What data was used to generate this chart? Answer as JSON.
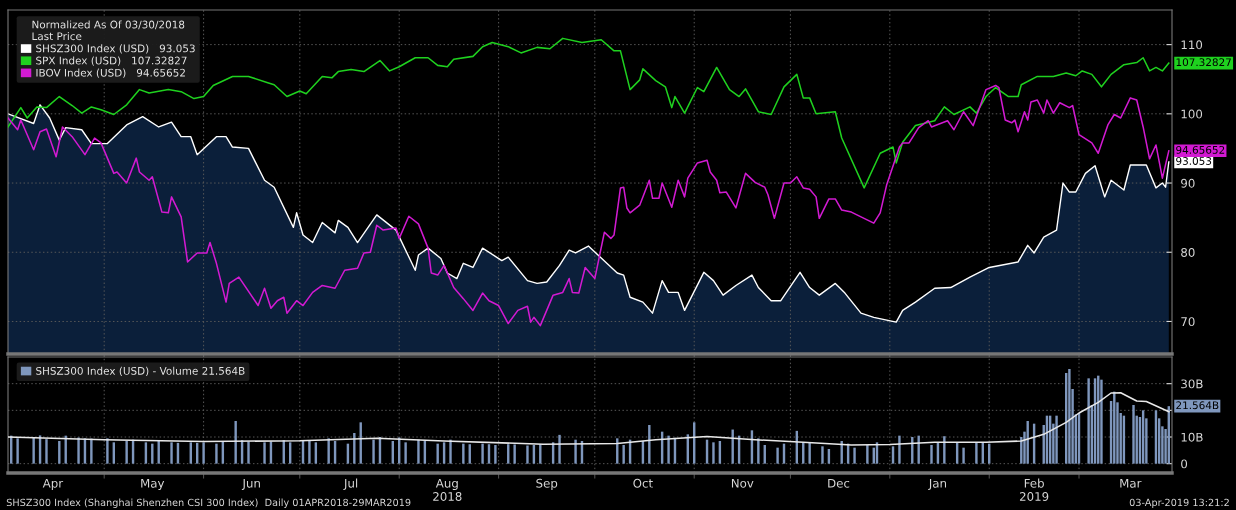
{
  "chart_data": [
    {
      "type": "line",
      "legend_title": "Normalized As Of 03/30/2018\nLast Price",
      "legend": "top left",
      "tick_labels": "y",
      "grid": true,
      "line_style": "solid",
      "xlim": [
        "2018-04-01",
        "2019-03-30"
      ],
      "ylim": [
        65.3,
        115
      ],
      "yticks": [
        70,
        80,
        90,
        100,
        110
      ],
      "xticks": [
        {
          "value": "2018-05-01",
          "label": null
        },
        {
          "value": "2018-06-01",
          "label": null
        },
        {
          "value": "2018-07-01",
          "label": null
        },
        {
          "value": "2018-08-01",
          "label": null
        },
        {
          "value": "2018-09-01",
          "label": null
        },
        {
          "value": "2018-10-01",
          "label": null
        },
        {
          "value": "2018-11-01",
          "label": null
        },
        {
          "value": "2018-12-01",
          "label": null
        },
        {
          "value": "2019-01-01",
          "label": null
        },
        {
          "value": "2019-02-01",
          "label": null
        },
        {
          "value": "2019-03-01",
          "label": null
        }
      ],
      "series": [
        {
          "name": "SHSZ300 Index (USD)   93.053",
          "type": "area",
          "color": "#ffffff",
          "x": [
            "2018-04-01",
            "2018-04-09",
            "2018-04-11",
            "2018-04-14",
            "2018-04-17",
            "2018-04-19",
            "2018-04-24",
            "2018-04-27",
            "2018-05-02",
            "2018-05-08",
            "2018-05-13",
            "2018-05-18",
            "2018-05-22",
            "2018-05-25",
            "2018-05-28",
            "2018-05-30",
            "2018-06-05",
            "2018-06-08",
            "2018-06-10",
            "2018-06-15",
            "2018-06-20",
            "2018-06-23",
            "2018-06-29",
            "2018-06-30",
            "2018-07-02",
            "2018-07-05",
            "2018-07-08",
            "2018-07-12",
            "2018-07-13",
            "2018-07-16",
            "2018-07-19",
            "2018-07-25",
            "2018-07-31",
            "2018-08-06",
            "2018-08-07",
            "2018-08-10",
            "2018-08-14",
            "2018-08-16",
            "2018-08-19",
            "2018-08-21",
            "2018-08-24",
            "2018-08-27",
            "2018-09-02",
            "2018-09-04",
            "2018-09-10",
            "2018-09-13",
            "2018-09-16",
            "2018-09-20",
            "2018-09-23",
            "2018-09-25",
            "2018-09-29",
            "2018-10-08",
            "2018-10-10",
            "2018-10-12",
            "2018-10-16",
            "2018-10-19",
            "2018-10-22",
            "2018-10-24",
            "2018-10-27",
            "2018-10-29",
            "2018-11-04",
            "2018-11-07",
            "2018-11-10",
            "2018-11-14",
            "2018-11-19",
            "2018-11-21",
            "2018-11-25",
            "2018-11-28",
            "2018-12-04",
            "2018-12-07",
            "2018-12-10",
            "2018-12-15",
            "2018-12-18",
            "2018-12-23",
            "2018-12-27",
            "2019-01-03",
            "2019-01-05",
            "2019-01-09",
            "2019-01-15",
            "2019-01-20",
            "2019-01-26",
            "2019-02-01",
            "2019-02-10",
            "2019-02-13",
            "2019-02-15",
            "2019-02-18",
            "2019-02-22",
            "2019-02-24",
            "2019-02-26",
            "2019-02-28",
            "2019-03-03",
            "2019-03-06",
            "2019-03-09",
            "2019-03-11",
            "2019-03-15",
            "2019-03-17",
            "2019-03-22",
            "2019-03-25",
            "2019-03-27",
            "2019-03-28",
            "2019-03-29"
          ],
          "values": [
            100,
            98.6,
            101.3,
            99.4,
            96.2,
            98,
            97.7,
            95.7,
            95.7,
            98.4,
            99.6,
            98.1,
            98.8,
            96.7,
            96.7,
            94.1,
            96.7,
            96.7,
            95.2,
            95,
            90.4,
            89.4,
            83.6,
            85.7,
            82.5,
            81.4,
            84.3,
            82.8,
            84.6,
            83.6,
            81.4,
            85.4,
            83.2,
            77.4,
            79.6,
            80.6,
            79.1,
            77,
            76.2,
            78.4,
            77.8,
            80.6,
            78.8,
            79.3,
            75.9,
            75.5,
            75.7,
            78.1,
            80.3,
            79.9,
            80.9,
            77,
            76.7,
            73.5,
            72.8,
            71.2,
            75.9,
            74.2,
            74.2,
            71.6,
            77.1,
            75.9,
            73.8,
            75.2,
            76.7,
            74.9,
            73,
            73,
            77.1,
            74.9,
            73.8,
            75.5,
            74.1,
            71.2,
            70.6,
            69.9,
            71.6,
            72.8,
            74.8,
            74.9,
            76.4,
            77.8,
            78.6,
            81,
            79.9,
            82.2,
            83.2,
            90,
            88.7,
            88.7,
            91.4,
            92.5,
            88,
            90.4,
            89,
            92.6,
            92.6,
            89.3,
            90,
            89.4,
            93.053
          ]
        },
        {
          "name": "SPX Index (USD)   107.32827",
          "color": "#1fd11f",
          "x": [
            "2018-04-01",
            "2018-04-05",
            "2018-04-07",
            "2018-04-10",
            "2018-04-13",
            "2018-04-17",
            "2018-04-21",
            "2018-04-24",
            "2018-04-27",
            "2018-04-30",
            "2018-05-04",
            "2018-05-08",
            "2018-05-12",
            "2018-05-15",
            "2018-05-21",
            "2018-05-25",
            "2018-05-29",
            "2018-06-01",
            "2018-06-04",
            "2018-06-10",
            "2018-06-15",
            "2018-06-21",
            "2018-06-23",
            "2018-06-27",
            "2018-07-01",
            "2018-07-03",
            "2018-07-08",
            "2018-07-11",
            "2018-07-13",
            "2018-07-17",
            "2018-07-21",
            "2018-07-26",
            "2018-07-29",
            "2018-08-01",
            "2018-08-06",
            "2018-08-10",
            "2018-08-13",
            "2018-08-16",
            "2018-08-18",
            "2018-08-24",
            "2018-08-27",
            "2018-08-30",
            "2018-09-04",
            "2018-09-08",
            "2018-09-13",
            "2018-09-17",
            "2018-09-21",
            "2018-09-27",
            "2018-10-03",
            "2018-10-07",
            "2018-10-09",
            "2018-10-12",
            "2018-10-15",
            "2018-10-16",
            "2018-10-20",
            "2018-10-23",
            "2018-10-25",
            "2018-10-26",
            "2018-10-29",
            "2018-11-02",
            "2018-11-04",
            "2018-11-08",
            "2018-11-12",
            "2018-11-15",
            "2018-11-17",
            "2018-11-21",
            "2018-11-25",
            "2018-11-29",
            "2018-12-03",
            "2018-12-05",
            "2018-12-07",
            "2018-12-09",
            "2018-12-15",
            "2018-12-17",
            "2018-12-24",
            "2018-12-29",
            "2019-01-02",
            "2019-01-03",
            "2019-01-05",
            "2019-01-09",
            "2019-01-15",
            "2019-01-18",
            "2019-01-21",
            "2019-01-26",
            "2019-01-28",
            "2019-01-31",
            "2019-02-03",
            "2019-02-07",
            "2019-02-10",
            "2019-02-11",
            "2019-02-16",
            "2019-02-21",
            "2019-02-25",
            "2019-02-28",
            "2019-03-02",
            "2019-03-05",
            "2019-03-08",
            "2019-03-11",
            "2019-03-15",
            "2019-03-19",
            "2019-03-21",
            "2019-03-23",
            "2019-03-25",
            "2019-03-27",
            "2019-03-29"
          ],
          "values": [
            98.1,
            100.9,
            99.4,
            101,
            100.9,
            102.5,
            101.2,
            100.1,
            101,
            100.6,
            99.9,
            101.3,
            103.5,
            103,
            103.5,
            103.2,
            102.2,
            102.5,
            104.1,
            105.4,
            105.4,
            104.5,
            104.2,
            102.5,
            103.3,
            102.9,
            105.4,
            105.2,
            106.1,
            106.4,
            106.1,
            107.7,
            106.2,
            106.8,
            108.1,
            108.1,
            107,
            106.8,
            107.9,
            108.3,
            109.7,
            110.3,
            109.7,
            108.8,
            109.6,
            109.4,
            110.9,
            110.3,
            110.7,
            109.1,
            109.1,
            103.5,
            104.9,
            106.5,
            104.8,
            103.9,
            100.9,
            102.5,
            100.1,
            103.8,
            103.2,
            106.7,
            103.5,
            102.5,
            103.6,
            100.3,
            99.9,
            103.9,
            105.7,
            102.3,
            102.3,
            100,
            100.3,
            96.5,
            89.3,
            94.3,
            95.2,
            92.9,
            95.9,
            98.3,
            99,
            101,
            99.9,
            101,
            100.1,
            102.5,
            103.8,
            102.5,
            102.5,
            104.2,
            105.4,
            105.4,
            105.9,
            105.5,
            106.2,
            105.7,
            103.9,
            105.7,
            107.1,
            107.4,
            108.1,
            106.2,
            106.7,
            106.2,
            107.32827
          ]
        },
        {
          "name": "IBOV Index (USD)   94.65652",
          "color": "#d21ad2",
          "x": [
            "2018-04-01",
            "2018-04-04",
            "2018-04-05",
            "2018-04-09",
            "2018-04-11",
            "2018-04-13",
            "2018-04-16",
            "2018-04-18",
            "2018-04-21",
            "2018-04-25",
            "2018-04-28",
            "2018-04-30",
            "2018-05-04",
            "2018-05-05",
            "2018-05-08",
            "2018-05-11",
            "2018-05-12",
            "2018-05-15",
            "2018-05-16",
            "2018-05-19",
            "2018-05-21",
            "2018-05-22",
            "2018-05-25",
            "2018-05-27",
            "2018-05-30",
            "2018-06-02",
            "2018-06-03",
            "2018-06-05",
            "2018-06-08",
            "2018-06-09",
            "2018-06-12",
            "2018-06-18",
            "2018-06-20",
            "2018-06-22",
            "2018-06-24",
            "2018-06-26",
            "2018-06-27",
            "2018-06-30",
            "2018-07-02",
            "2018-07-05",
            "2018-07-08",
            "2018-07-12",
            "2018-07-15",
            "2018-07-19",
            "2018-07-21",
            "2018-07-23",
            "2018-07-25",
            "2018-07-27",
            "2018-07-31",
            "2018-08-01",
            "2018-08-04",
            "2018-08-07",
            "2018-08-10",
            "2018-08-11",
            "2018-08-13",
            "2018-08-15",
            "2018-08-18",
            "2018-08-21",
            "2018-08-24",
            "2018-08-27",
            "2018-08-29",
            "2018-09-01",
            "2018-09-04",
            "2018-09-07",
            "2018-09-10",
            "2018-09-11",
            "2018-09-12",
            "2018-09-14",
            "2018-09-18",
            "2018-09-21",
            "2018-09-23",
            "2018-09-24",
            "2018-09-26",
            "2018-09-28",
            "2018-10-01",
            "2018-10-04",
            "2018-10-06",
            "2018-10-07",
            "2018-10-09",
            "2018-10-10",
            "2018-10-11",
            "2018-10-12",
            "2018-10-15",
            "2018-10-18",
            "2018-10-19",
            "2018-10-21",
            "2018-10-22",
            "2018-10-25",
            "2018-10-27",
            "2018-10-29",
            "2018-10-30",
            "2018-11-02",
            "2018-11-05",
            "2018-11-06",
            "2018-11-08",
            "2018-11-09",
            "2018-11-11",
            "2018-11-14",
            "2018-11-17",
            "2018-11-20",
            "2018-11-23",
            "2018-11-24",
            "2018-11-26",
            "2018-11-29",
            "2018-12-01",
            "2018-12-03",
            "2018-12-05",
            "2018-12-07",
            "2018-12-09",
            "2018-12-10",
            "2018-12-13",
            "2018-12-15",
            "2018-12-17",
            "2018-12-20",
            "2018-12-27",
            "2018-12-29",
            "2018-12-31",
            "2019-01-04",
            "2019-01-05",
            "2019-01-07",
            "2019-01-10",
            "2019-01-13",
            "2019-01-14",
            "2019-01-19",
            "2019-01-21",
            "2019-01-24",
            "2019-01-27",
            "2019-01-31",
            "2019-02-03",
            "2019-02-04",
            "2019-02-06",
            "2019-02-08",
            "2019-02-09",
            "2019-02-10",
            "2019-02-12",
            "2019-02-13",
            "2019-02-14",
            "2019-02-16",
            "2019-02-18",
            "2019-02-19",
            "2019-02-21",
            "2019-02-23",
            "2019-02-26",
            "2019-02-27",
            "2019-03-01",
            "2019-03-05",
            "2019-03-07",
            "2019-03-10",
            "2019-03-12",
            "2019-03-14",
            "2019-03-17",
            "2019-03-19",
            "2019-03-21",
            "2019-03-23",
            "2019-03-25",
            "2019-03-27",
            "2019-03-29"
          ],
          "values": [
            99.4,
            97.7,
            99.1,
            94.8,
            97.4,
            97.8,
            93.8,
            98.1,
            96.7,
            94.1,
            96.5,
            95.8,
            91.4,
            91.6,
            90,
            93.6,
            91.6,
            90.4,
            90.9,
            85.8,
            85.7,
            88,
            85.1,
            78.6,
            79.9,
            79.9,
            81.4,
            78.4,
            72.8,
            75.5,
            76.4,
            72.3,
            74.8,
            71.9,
            73,
            73.5,
            71.2,
            73,
            72.3,
            74.2,
            75.2,
            74.8,
            77.4,
            77.7,
            79.9,
            80,
            83.9,
            83.2,
            83.5,
            82,
            85.2,
            84.1,
            80.6,
            77,
            76.7,
            78.1,
            74.9,
            73.3,
            71.6,
            74.1,
            73,
            72.3,
            69.7,
            71.6,
            72.2,
            69.9,
            70.6,
            69.4,
            73.8,
            74.2,
            76.2,
            74.2,
            74.1,
            77.8,
            76.2,
            82.9,
            82,
            82.5,
            89.3,
            89.4,
            86.4,
            85.7,
            86.8,
            90.4,
            87.8,
            87.8,
            90,
            86.5,
            90.4,
            88,
            90.7,
            92.9,
            93.3,
            91.6,
            90.4,
            88.6,
            88.7,
            86.4,
            91.4,
            90.1,
            89.4,
            88.3,
            84.9,
            90,
            90,
            90.9,
            89.3,
            89.1,
            88,
            84.9,
            87.7,
            87.7,
            86.1,
            85.8,
            84.2,
            85.7,
            89.7,
            95.2,
            95.8,
            95.8,
            98,
            99,
            98.1,
            99,
            97.7,
            100.3,
            98.3,
            103.5,
            104.1,
            103.8,
            99.1,
            98.7,
            99.1,
            97.4,
            100.3,
            99.1,
            101.7,
            102,
            100.1,
            102,
            100.1,
            101.6,
            100.9,
            101.2,
            97,
            95.8,
            94.3,
            98.4,
            99.9,
            99.4,
            102.3,
            102,
            98.1,
            93.5,
            95.5,
            90.7,
            94.65652
          ]
        }
      ],
      "annotations": [
        {
          "text": "93.053",
          "x": "2019-03-29",
          "y": 93.053
        },
        {
          "text": "107.32827",
          "x": "2019-03-29",
          "y": 107.32827
        },
        {
          "text": "94.65652",
          "x": "2019-03-29",
          "y": 94.65652
        }
      ]
    },
    {
      "type": "bar",
      "legend": "top left",
      "grid": true,
      "xlim": [
        "2018-04-01",
        "2019-03-30"
      ],
      "ylim": [
        -3.5,
        40
      ],
      "yticks": [
        0,
        {
          "value": 10,
          "label": "10B"
        },
        {
          "value": 20,
          "label": null
        },
        {
          "value": 30,
          "label": "30B"
        }
      ],
      "xticks": [
        {
          "value": "2018-04-15",
          "label": "Apr"
        },
        {
          "value": "2018-05-01",
          "label": null
        },
        {
          "value": "2018-05-16",
          "label": "May"
        },
        {
          "value": "2018-06-01",
          "label": null
        },
        {
          "value": "2018-06-16",
          "label": "Jun"
        },
        {
          "value": "2018-07-01",
          "label": null
        },
        {
          "value": "2018-07-17",
          "label": "Jul"
        },
        {
          "value": "2018-08-01",
          "label": null
        },
        {
          "value": "2018-08-16",
          "label": "Aug\n2018"
        },
        {
          "value": "2018-09-01",
          "label": null
        },
        {
          "value": "2018-09-16",
          "label": "Sep"
        },
        {
          "value": "2018-10-01",
          "label": null
        },
        {
          "value": "2018-10-16",
          "label": "Oct"
        },
        {
          "value": "2018-11-01",
          "label": null
        },
        {
          "value": "2018-11-16",
          "label": "Nov"
        },
        {
          "value": "2018-12-01",
          "label": null
        },
        {
          "value": "2018-12-16",
          "label": "Dec"
        },
        {
          "value": "2019-01-01",
          "label": null
        },
        {
          "value": "2019-01-16",
          "label": "Jan"
        },
        {
          "value": "2019-02-01",
          "label": null
        },
        {
          "value": "2019-02-15",
          "label": "Feb\n2019"
        },
        {
          "value": "2019-03-01",
          "label": null
        },
        {
          "value": "2019-03-17",
          "label": "Mar"
        }
      ],
      "series": [
        {
          "name": "SHSZ300 Index (USD) - Volume 21.564B",
          "color": "#7f97bd",
          "x": [
            "2018-04-02",
            "2018-04-04",
            "2018-04-09",
            "2018-04-11",
            "2018-04-13",
            "2018-04-17",
            "2018-04-19",
            "2018-04-23",
            "2018-04-25",
            "2018-04-27",
            "2018-05-02",
            "2018-05-04",
            "2018-05-08",
            "2018-05-10",
            "2018-05-14",
            "2018-05-16",
            "2018-05-18",
            "2018-05-22",
            "2018-05-24",
            "2018-05-28",
            "2018-05-30",
            "2018-06-01",
            "2018-06-05",
            "2018-06-07",
            "2018-06-11",
            "2018-06-13",
            "2018-06-15",
            "2018-06-20",
            "2018-06-22",
            "2018-06-26",
            "2018-06-28",
            "2018-07-02",
            "2018-07-04",
            "2018-07-06",
            "2018-07-10",
            "2018-07-12",
            "2018-07-16",
            "2018-07-18",
            "2018-07-20",
            "2018-07-24",
            "2018-07-26",
            "2018-07-30",
            "2018-08-01",
            "2018-08-03",
            "2018-08-07",
            "2018-08-09",
            "2018-08-13",
            "2018-08-15",
            "2018-08-17",
            "2018-08-21",
            "2018-08-23",
            "2018-08-27",
            "2018-08-29",
            "2018-08-31",
            "2018-09-04",
            "2018-09-06",
            "2018-09-10",
            "2018-09-12",
            "2018-09-14",
            "2018-09-18",
            "2018-09-20",
            "2018-09-25",
            "2018-09-27",
            "2018-10-08",
            "2018-10-10",
            "2018-10-12",
            "2018-10-16",
            "2018-10-18",
            "2018-10-22",
            "2018-10-24",
            "2018-10-26",
            "2018-10-30",
            "2018-11-01",
            "2018-11-05",
            "2018-11-07",
            "2018-11-09",
            "2018-11-13",
            "2018-11-15",
            "2018-11-19",
            "2018-11-21",
            "2018-11-23",
            "2018-11-27",
            "2018-11-29",
            "2018-12-03",
            "2018-12-05",
            "2018-12-07",
            "2018-12-11",
            "2018-12-13",
            "2018-12-17",
            "2018-12-19",
            "2018-12-21",
            "2018-12-25",
            "2018-12-27",
            "2018-12-28",
            "2019-01-02",
            "2019-01-04",
            "2019-01-08",
            "2019-01-10",
            "2019-01-14",
            "2019-01-16",
            "2019-01-18",
            "2019-01-22",
            "2019-01-24",
            "2019-01-28",
            "2019-01-30",
            "2019-02-01",
            "2019-02-11",
            "2019-02-12",
            "2019-02-13",
            "2019-02-15",
            "2019-02-18",
            "2019-02-19",
            "2019-02-20",
            "2019-02-21",
            "2019-02-22",
            "2019-02-25",
            "2019-02-26",
            "2019-02-27",
            "2019-02-28",
            "2019-03-01",
            "2019-03-04",
            "2019-03-05",
            "2019-03-06",
            "2019-03-07",
            "2019-03-08",
            "2019-03-11",
            "2019-03-12",
            "2019-03-13",
            "2019-03-14",
            "2019-03-15",
            "2019-03-18",
            "2019-03-19",
            "2019-03-20",
            "2019-03-21",
            "2019-03-22",
            "2019-03-25",
            "2019-03-26",
            "2019-03-27",
            "2019-03-28",
            "2019-03-29"
          ],
          "values": [
            10.5,
            9.5,
            9.8,
            10.6,
            9.2,
            8.5,
            10.5,
            9.8,
            9.5,
            9.4,
            9.5,
            8,
            8.5,
            9,
            8,
            7.5,
            8.7,
            8,
            7.8,
            8,
            7.8,
            8,
            7.5,
            8.2,
            16,
            8.8,
            8.3,
            8,
            8.3,
            8.8,
            8,
            8.5,
            8.7,
            8,
            9.5,
            8.5,
            7.5,
            11.5,
            15.5,
            9,
            10,
            8.5,
            9.8,
            8,
            9,
            8.5,
            7.5,
            8,
            9,
            7.5,
            7.3,
            7.5,
            7.3,
            7,
            7.3,
            7.2,
            6.8,
            7,
            7.3,
            8,
            10.8,
            9,
            8.5,
            9.5,
            7,
            9,
            8.5,
            14.5,
            12,
            10.5,
            9.7,
            11,
            15.5,
            9,
            8,
            8.5,
            12.8,
            10.5,
            12.5,
            9.5,
            7,
            6,
            7.5,
            12.3,
            8,
            7.8,
            6.5,
            5.5,
            8.5,
            7.5,
            6,
            7,
            6,
            8,
            6.5,
            10.5,
            10,
            10.5,
            7,
            8,
            10.3,
            8,
            6,
            8,
            8,
            7.5,
            10,
            12,
            16,
            15,
            14.5,
            18,
            18,
            15,
            18,
            34,
            35.5,
            28,
            18.5,
            19,
            32,
            22,
            32,
            33,
            31.5,
            23.5,
            27,
            23,
            19,
            18,
            22,
            18,
            17.5,
            20,
            17,
            20,
            17,
            14,
            13,
            21.564
          ]
        },
        {
          "type": "line",
          "color": "#e8e8e8",
          "x": [
            "2018-04-01",
            "2018-05-01",
            "2018-06-01",
            "2018-07-01",
            "2018-07-25",
            "2018-08-15",
            "2018-09-15",
            "2018-10-08",
            "2018-10-20",
            "2018-11-05",
            "2018-11-20",
            "2018-12-05",
            "2018-12-20",
            "2019-01-01",
            "2019-01-15",
            "2019-01-31",
            "2019-02-11",
            "2019-02-18",
            "2019-02-25",
            "2019-03-01",
            "2019-03-07",
            "2019-03-11",
            "2019-03-14",
            "2019-03-19",
            "2019-03-22",
            "2019-03-29"
          ],
          "values": [
            10,
            9,
            8.3,
            8.6,
            9.5,
            8.5,
            7.3,
            7.6,
            9,
            10.2,
            9,
            8,
            7,
            7.2,
            8,
            8,
            8.5,
            11,
            15.5,
            19,
            23,
            26.5,
            26.6,
            23.5,
            23.3,
            19.5
          ]
        }
      ],
      "annotations": [
        {
          "text": "21.564B",
          "x": "2019-03-29",
          "y": 21.564
        },
        "SHSZ300 Index (Shanghai Shenzhen CSI 300 Index)  Daily 01APR2018-29MAR2019",
        "03-Apr-2019 13:21:2"
      ]
    }
  ]
}
